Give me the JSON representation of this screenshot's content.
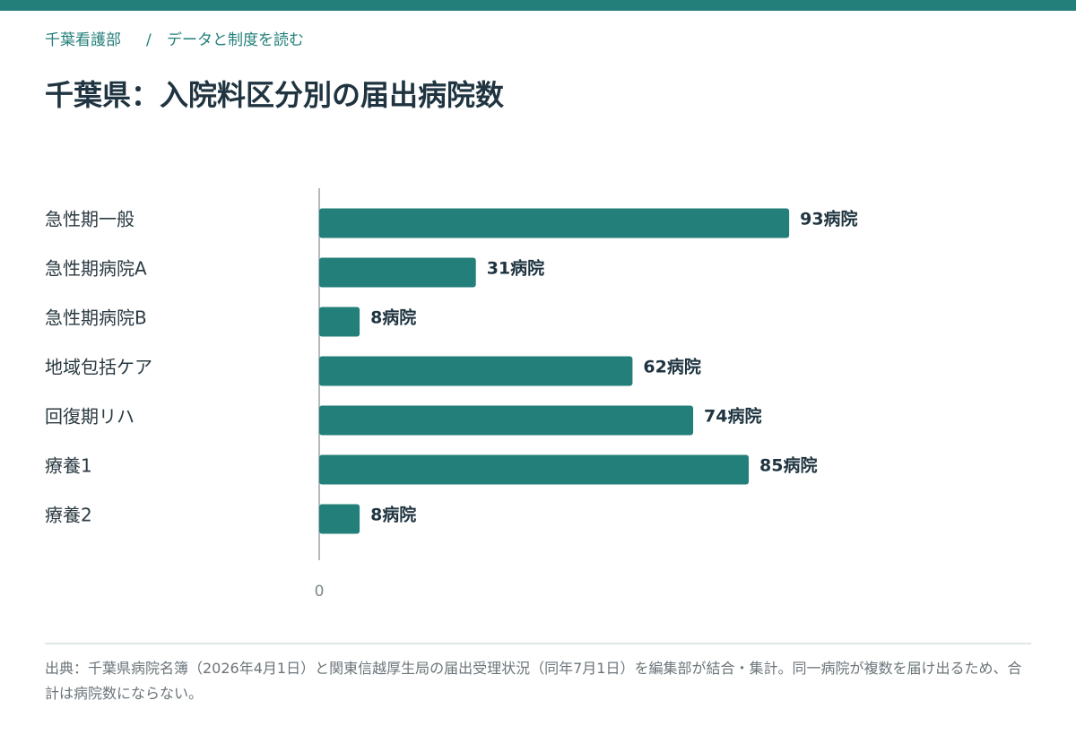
{
  "breadcrumb": {
    "home": "千葉看護部",
    "separator": "/",
    "current": "データと制度を読む"
  },
  "chart_data": {
    "type": "bar",
    "orientation": "horizontal",
    "title": "千葉県：入院料区分別の届出病院数",
    "categories": [
      "急性期一般",
      "急性期病院A",
      "急性期病院B",
      "地域包括ケア",
      "回復期リハ",
      "療養1",
      "療養2"
    ],
    "values": [
      93,
      31,
      8,
      62,
      74,
      85,
      8
    ],
    "value_labels": [
      "93病院",
      "31病院",
      "8病院",
      "62病院",
      "74病院",
      "85病院",
      "8病院"
    ],
    "color": "#237f7a",
    "xlim": [
      0,
      140
    ],
    "xticks": [
      0
    ]
  },
  "footnote": "出典：千葉県病院名簿（2026年4月1日）と関東信越厚生局の届出受理状況（同年7月1日）を編集部が結合・集計。同一病院が複数を届け出るため、合計は病院数にならない。"
}
